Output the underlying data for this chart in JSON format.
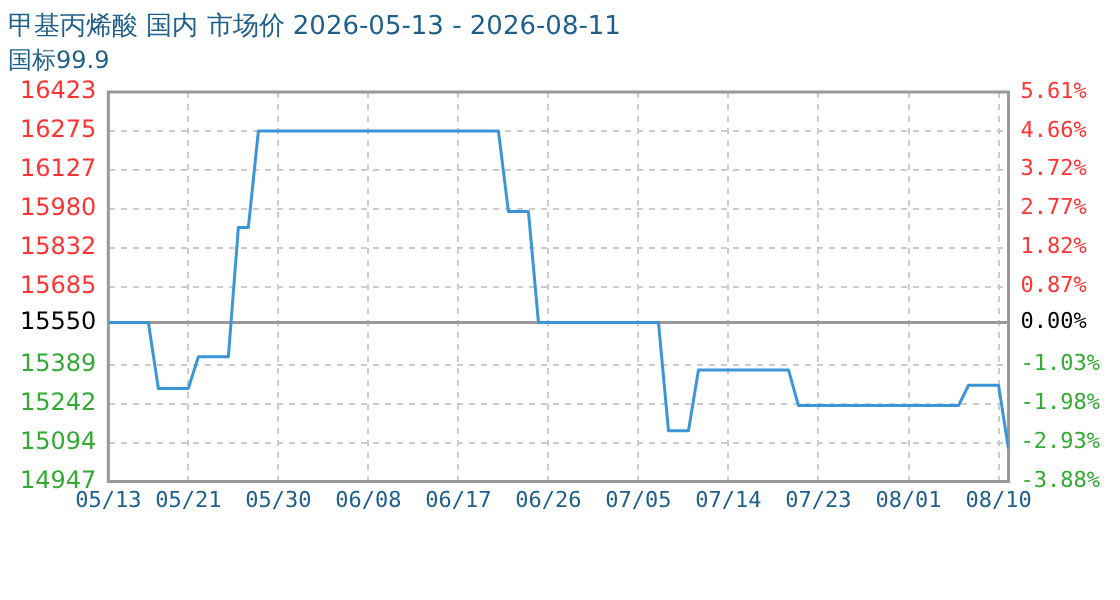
{
  "chart_data": {
    "type": "line",
    "title": "甲基丙烯酸 国内 市场价 2026-05-13 - 2026-08-11",
    "subtitle": "国标99.9",
    "x": [
      "2026-05-13",
      "2026-05-17",
      "2026-05-18",
      "2026-05-21",
      "2026-05-22",
      "2026-05-25",
      "2026-05-26",
      "2026-05-27",
      "2026-05-28",
      "2026-06-21",
      "2026-06-22",
      "2026-06-24",
      "2026-06-25",
      "2026-07-07",
      "2026-07-08",
      "2026-07-10",
      "2026-07-11",
      "2026-07-20",
      "2026-07-21",
      "2026-08-06",
      "2026-08-07",
      "2026-08-10",
      "2026-08-11"
    ],
    "series": [
      {
        "color": "#3a96d6",
        "values": [
          15550,
          15550,
          15300,
          15300,
          15420,
          15420,
          15910,
          15910,
          16275,
          16275,
          15970,
          15970,
          15550,
          15550,
          15140,
          15140,
          15370,
          15370,
          15235,
          15235,
          15312,
          15312,
          15070
        ]
      }
    ],
    "xlim": [
      "2026-05-13",
      "2026-08-11"
    ],
    "xticks": [
      {
        "value": "2026-05-13",
        "label": "05/13"
      },
      {
        "value": "2026-05-21",
        "label": "05/21"
      },
      {
        "value": "2026-05-30",
        "label": "05/30"
      },
      {
        "value": "2026-06-08",
        "label": "06/08"
      },
      {
        "value": "2026-06-17",
        "label": "06/17"
      },
      {
        "value": "2026-06-26",
        "label": "06/26"
      },
      {
        "value": "2026-07-05",
        "label": "07/05"
      },
      {
        "value": "2026-07-14",
        "label": "07/14"
      },
      {
        "value": "2026-07-23",
        "label": "07/23"
      },
      {
        "value": "2026-08-01",
        "label": "08/01"
      },
      {
        "value": "2026-08-10",
        "label": "08/10"
      }
    ],
    "ylim": [
      14947,
      16423
    ],
    "yticks": [
      14947,
      15094,
      15242,
      15389,
      15550,
      15685,
      15832,
      15980,
      16127,
      16275,
      16423
    ],
    "y2lim": [
      -3.88,
      5.61
    ],
    "y2ticks": [
      {
        "value": -3.88,
        "label": "-3.88%"
      },
      {
        "value": -2.93,
        "label": "-2.93%"
      },
      {
        "value": -1.98,
        "label": "-1.98%"
      },
      {
        "value": -1.03,
        "label": "-1.03%"
      },
      {
        "value": 0,
        "label": "0.00%"
      },
      {
        "value": 0.87,
        "label": "0.87%"
      },
      {
        "value": 1.82,
        "label": "1.82%"
      },
      {
        "value": 2.77,
        "label": "2.77%"
      },
      {
        "value": 3.72,
        "label": "3.72%"
      },
      {
        "value": 4.66,
        "label": "4.66%"
      },
      {
        "value": 5.61,
        "label": "5.61%"
      }
    ],
    "ref_lines": [
      {
        "axis": "y",
        "value": 15550,
        "color": "#999999"
      }
    ],
    "grid": true,
    "legend": false,
    "marker": "none",
    "line_style": "solid"
  }
}
